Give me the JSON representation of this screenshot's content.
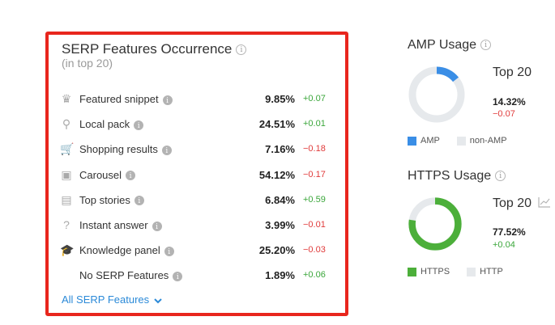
{
  "serp": {
    "title": "SERP Features Occurrence",
    "subtitle": "(in top 20)",
    "info_icon": "i",
    "rows": [
      {
        "icon": "crown-icon",
        "glyph": "♛",
        "label": "Featured snippet",
        "pct": "9.85%",
        "delta": "+0.07",
        "dir": "pos"
      },
      {
        "icon": "map-pin-icon",
        "glyph": "⚲",
        "label": "Local pack",
        "pct": "24.51%",
        "delta": "+0.01",
        "dir": "pos"
      },
      {
        "icon": "shopping-cart-icon",
        "glyph": "🛒",
        "label": "Shopping results",
        "pct": "7.16%",
        "delta": "−0.18",
        "dir": "neg"
      },
      {
        "icon": "carousel-icon",
        "glyph": "▣",
        "label": "Carousel",
        "pct": "54.12%",
        "delta": "−0.17",
        "dir": "neg"
      },
      {
        "icon": "newspaper-icon",
        "glyph": "▤",
        "label": "Top stories",
        "pct": "6.84%",
        "delta": "+0.59",
        "dir": "pos"
      },
      {
        "icon": "question-icon",
        "glyph": "?",
        "label": "Instant answer",
        "pct": "3.99%",
        "delta": "−0.01",
        "dir": "neg"
      },
      {
        "icon": "graduation-cap-icon",
        "glyph": "🎓",
        "label": "Knowledge panel",
        "pct": "25.20%",
        "delta": "−0.03",
        "dir": "neg"
      },
      {
        "icon": "",
        "glyph": "",
        "label": "No SERP Features",
        "pct": "1.89%",
        "delta": "+0.06",
        "dir": "pos"
      }
    ],
    "all_link": "All SERP Features"
  },
  "amp": {
    "title": "AMP Usage",
    "top": "Top 20",
    "pct": "14.32%",
    "delta": "−0.07",
    "share": 0.1432,
    "color": "#3a8ee6",
    "rest_color": "#e6e9ec",
    "legend": [
      {
        "label": "AMP",
        "color": "#3a8ee6"
      },
      {
        "label": "non-AMP",
        "color": "#e6e9ec"
      }
    ]
  },
  "https": {
    "title": "HTTPS Usage",
    "top": "Top 20",
    "pct": "77.52%",
    "delta": "+0.04",
    "share": 0.7752,
    "color": "#4caf3a",
    "rest_color": "#e6e9ec",
    "legend": [
      {
        "label": "HTTPS",
        "color": "#4caf3a"
      },
      {
        "label": "HTTP",
        "color": "#e6e9ec"
      }
    ]
  }
}
